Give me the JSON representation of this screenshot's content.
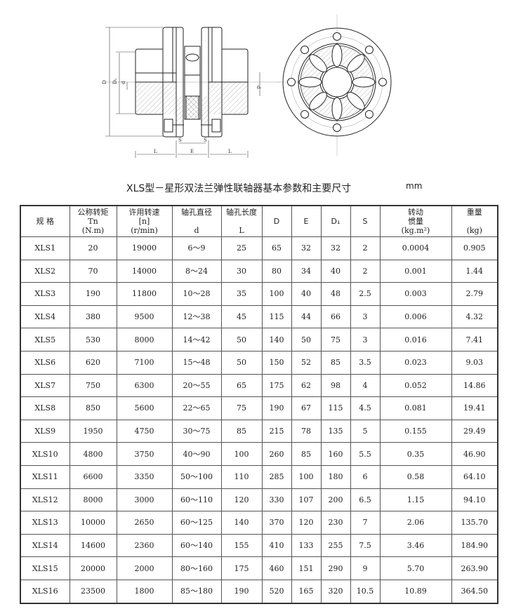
{
  "drawing": {
    "labels": {
      "D": "D",
      "D1": "D₁",
      "d": "d",
      "d_right": "d",
      "S_left": "S",
      "S_right": "S",
      "E": "E",
      "L_left": "L",
      "L_right": "L"
    }
  },
  "title": "XLS型－星形双法兰弹性联轴器基本参数和主要尺寸",
  "unit": "mm",
  "table": {
    "headers": [
      {
        "l1": "规 格",
        "l2": "",
        "l3": ""
      },
      {
        "l1": "公称转矩",
        "l2": "Tn",
        "l3": "(N.m)"
      },
      {
        "l1": "许用转速",
        "l2": "[n]",
        "l3": "(r/min)"
      },
      {
        "l1": "轴孔直径",
        "l2": "",
        "l3": "d"
      },
      {
        "l1": "轴孔长度",
        "l2": "",
        "l3": "L"
      },
      {
        "l1": "D",
        "l2": "",
        "l3": ""
      },
      {
        "l1": "E",
        "l2": "",
        "l3": ""
      },
      {
        "l1": "D₁",
        "l2": "",
        "l3": ""
      },
      {
        "l1": "S",
        "l2": "",
        "l3": ""
      },
      {
        "l1": "转动",
        "l2": "惯量",
        "l3": "(kg.m²)"
      },
      {
        "l1": "重量",
        "l2": "",
        "l3": "(kg)"
      }
    ],
    "rows": [
      [
        "XLS1",
        "20",
        "19000",
        "6～9",
        "25",
        "65",
        "32",
        "32",
        "2",
        "0.0004",
        "0.905"
      ],
      [
        "XLS2",
        "70",
        "14000",
        "8～24",
        "30",
        "80",
        "34",
        "40",
        "2",
        "0.001",
        "1.44"
      ],
      [
        "XLS3",
        "190",
        "11800",
        "10～28",
        "35",
        "100",
        "40",
        "48",
        "2.5",
        "0.003",
        "2.79"
      ],
      [
        "XLS4",
        "380",
        "9500",
        "12～38",
        "45",
        "115",
        "44",
        "66",
        "3",
        "0.006",
        "4.32"
      ],
      [
        "XLS5",
        "530",
        "8000",
        "14～42",
        "50",
        "140",
        "50",
        "75",
        "3",
        "0.016",
        "7.41"
      ],
      [
        "XLS6",
        "620",
        "7100",
        "15～48",
        "50",
        "150",
        "52",
        "85",
        "3.5",
        "0.023",
        "9.03"
      ],
      [
        "XLS7",
        "750",
        "6300",
        "20～55",
        "65",
        "175",
        "62",
        "98",
        "4",
        "0.052",
        "14.86"
      ],
      [
        "XLS8",
        "850",
        "5600",
        "22～65",
        "75",
        "190",
        "67",
        "115",
        "4.5",
        "0.081",
        "19.41"
      ],
      [
        "XLS9",
        "1950",
        "4750",
        "30～75",
        "85",
        "215",
        "78",
        "135",
        "5",
        "0.155",
        "29.49"
      ],
      [
        "XLS10",
        "4800",
        "3750",
        "40～90",
        "100",
        "260",
        "85",
        "160",
        "5.5",
        "0.35",
        "46.90"
      ],
      [
        "XLS11",
        "6600",
        "3350",
        "50～100",
        "110",
        "285",
        "100",
        "180",
        "6",
        "0.58",
        "64.10"
      ],
      [
        "XLS12",
        "8000",
        "3000",
        "60～110",
        "120",
        "330",
        "107",
        "200",
        "6.5",
        "1.15",
        "94.10"
      ],
      [
        "XLS13",
        "10000",
        "2650",
        "60～125",
        "140",
        "370",
        "120",
        "230",
        "7",
        "2.06",
        "135.70"
      ],
      [
        "XLS14",
        "14600",
        "2360",
        "60～140",
        "155",
        "410",
        "133",
        "255",
        "7.5",
        "3.46",
        "184.90"
      ],
      [
        "XLS15",
        "20000",
        "2000",
        "80～160",
        "175",
        "460",
        "151",
        "290",
        "9",
        "5.70",
        "263.90"
      ],
      [
        "XLS16",
        "23500",
        "1800",
        "85～180",
        "190",
        "520",
        "165",
        "320",
        "10.5",
        "10.89",
        "364.50"
      ]
    ]
  }
}
